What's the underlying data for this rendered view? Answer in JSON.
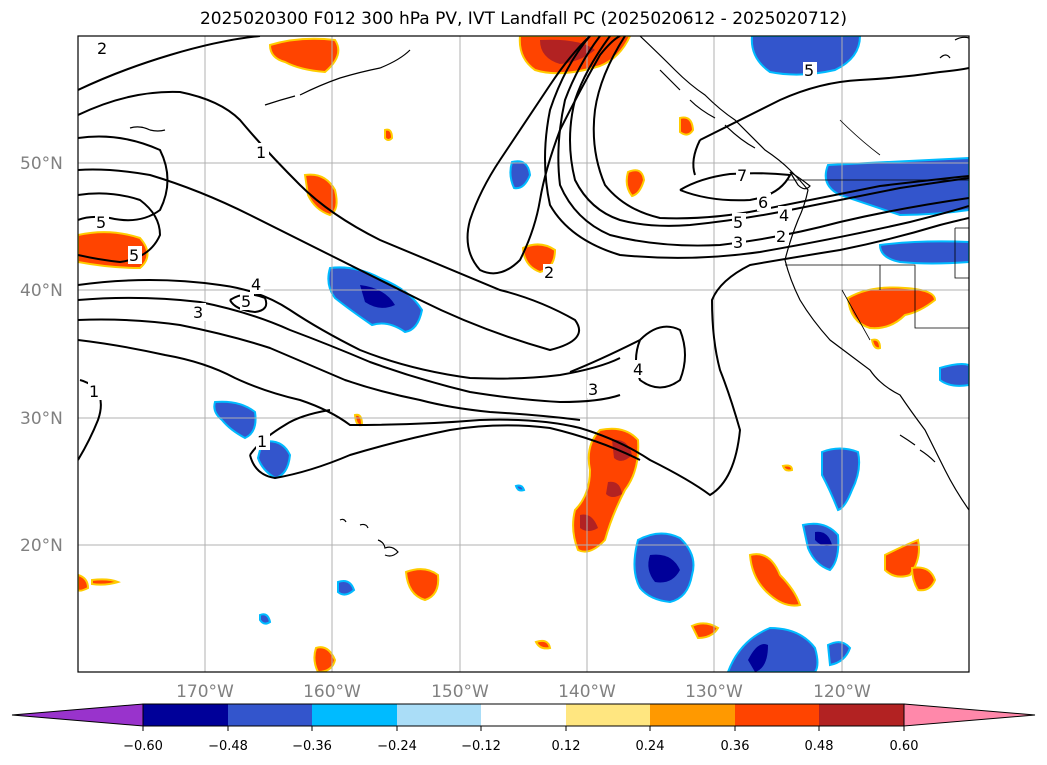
{
  "title": "2025020300 F012 300 hPa PV, IVT Landfall PC (2025020612 - 2025020712)",
  "map": {
    "lat_labels": [
      "50°N",
      "40°N",
      "30°N",
      "20°N"
    ],
    "lon_labels": [
      "170°W",
      "160°W",
      "150°W",
      "140°W",
      "130°W",
      "120°W"
    ],
    "extent": {
      "lon_min": -180,
      "lon_max": -110,
      "lat_min": 10,
      "lat_max": 60
    },
    "gridlines": true
  },
  "contour_labels": [
    "2",
    "1",
    "5",
    "5",
    "4",
    "5",
    "3",
    "1",
    "1",
    "2",
    "3",
    "4",
    "7",
    "6",
    "5",
    "4",
    "3",
    "2",
    "5"
  ],
  "colorbar": {
    "ticks": [
      "−0.60",
      "−0.48",
      "−0.36",
      "−0.24",
      "−0.12",
      "0.12",
      "0.24",
      "0.36",
      "0.48",
      "0.60"
    ],
    "colors": [
      "#9933cc",
      "#000099",
      "#3355cc",
      "#00bbff",
      "#aaddf7",
      "#ffffff",
      "#ffe680",
      "#ff9900",
      "#ff4400",
      "#b22222",
      "#ff88aa"
    ]
  }
}
